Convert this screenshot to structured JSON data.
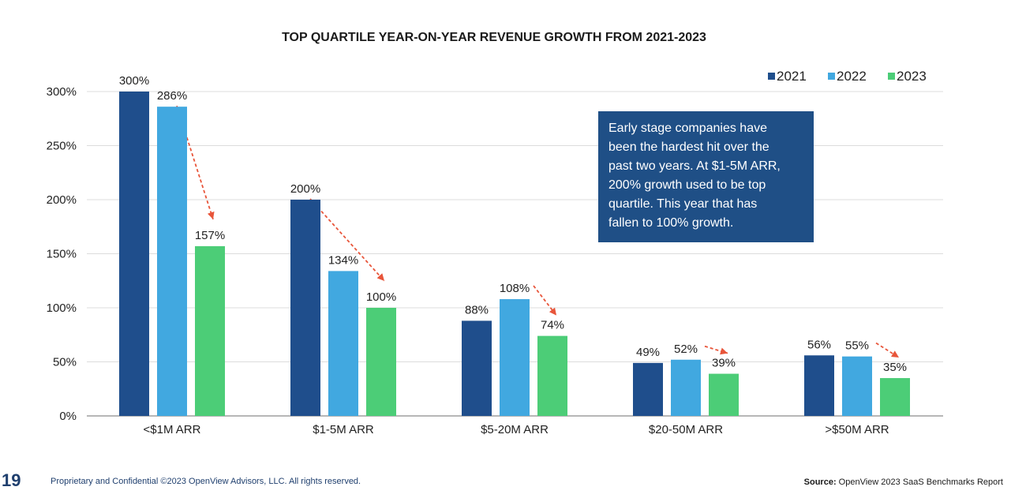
{
  "chart_data": {
    "type": "bar",
    "title": "TOP QUARTILE YEAR-ON-YEAR REVENUE GROWTH FROM 2021-2023",
    "categories": [
      "<$1M ARR",
      "$1-5M ARR",
      "$5-20M ARR",
      "$20-50M ARR",
      ">$50M ARR"
    ],
    "series": [
      {
        "name": "2021",
        "color": "#1f4e8c",
        "values": [
          300,
          200,
          88,
          49,
          56
        ]
      },
      {
        "name": "2022",
        "color": "#41a8e0",
        "values": [
          286,
          134,
          108,
          52,
          55
        ]
      },
      {
        "name": "2023",
        "color": "#4ccd77",
        "values": [
          157,
          100,
          74,
          39,
          35
        ]
      }
    ],
    "ylim": [
      0,
      300
    ],
    "yticks": [
      0,
      50,
      100,
      150,
      200,
      250,
      300
    ],
    "ytick_labels": [
      "0%",
      "50%",
      "100%",
      "150%",
      "200%",
      "250%",
      "300%"
    ],
    "value_suffix": "%",
    "legend_position": "top-right",
    "grid": true,
    "annotation_arrow_color": "#e8553a"
  },
  "callout": {
    "lines": [
      "Early stage companies have",
      "been the hardest hit over the",
      "past two years. At $1-5M ARR,",
      "200% growth used to be top",
      "quartile. This year that has",
      "fallen to 100% growth."
    ]
  },
  "footer": {
    "page_number": "19",
    "confidential": "Proprietary and Confidential ©2023 OpenView Advisors, LLC. All rights reserved.",
    "source_label": "Source:",
    "source_text": " OpenView 2023 SaaS Benchmarks Report"
  }
}
